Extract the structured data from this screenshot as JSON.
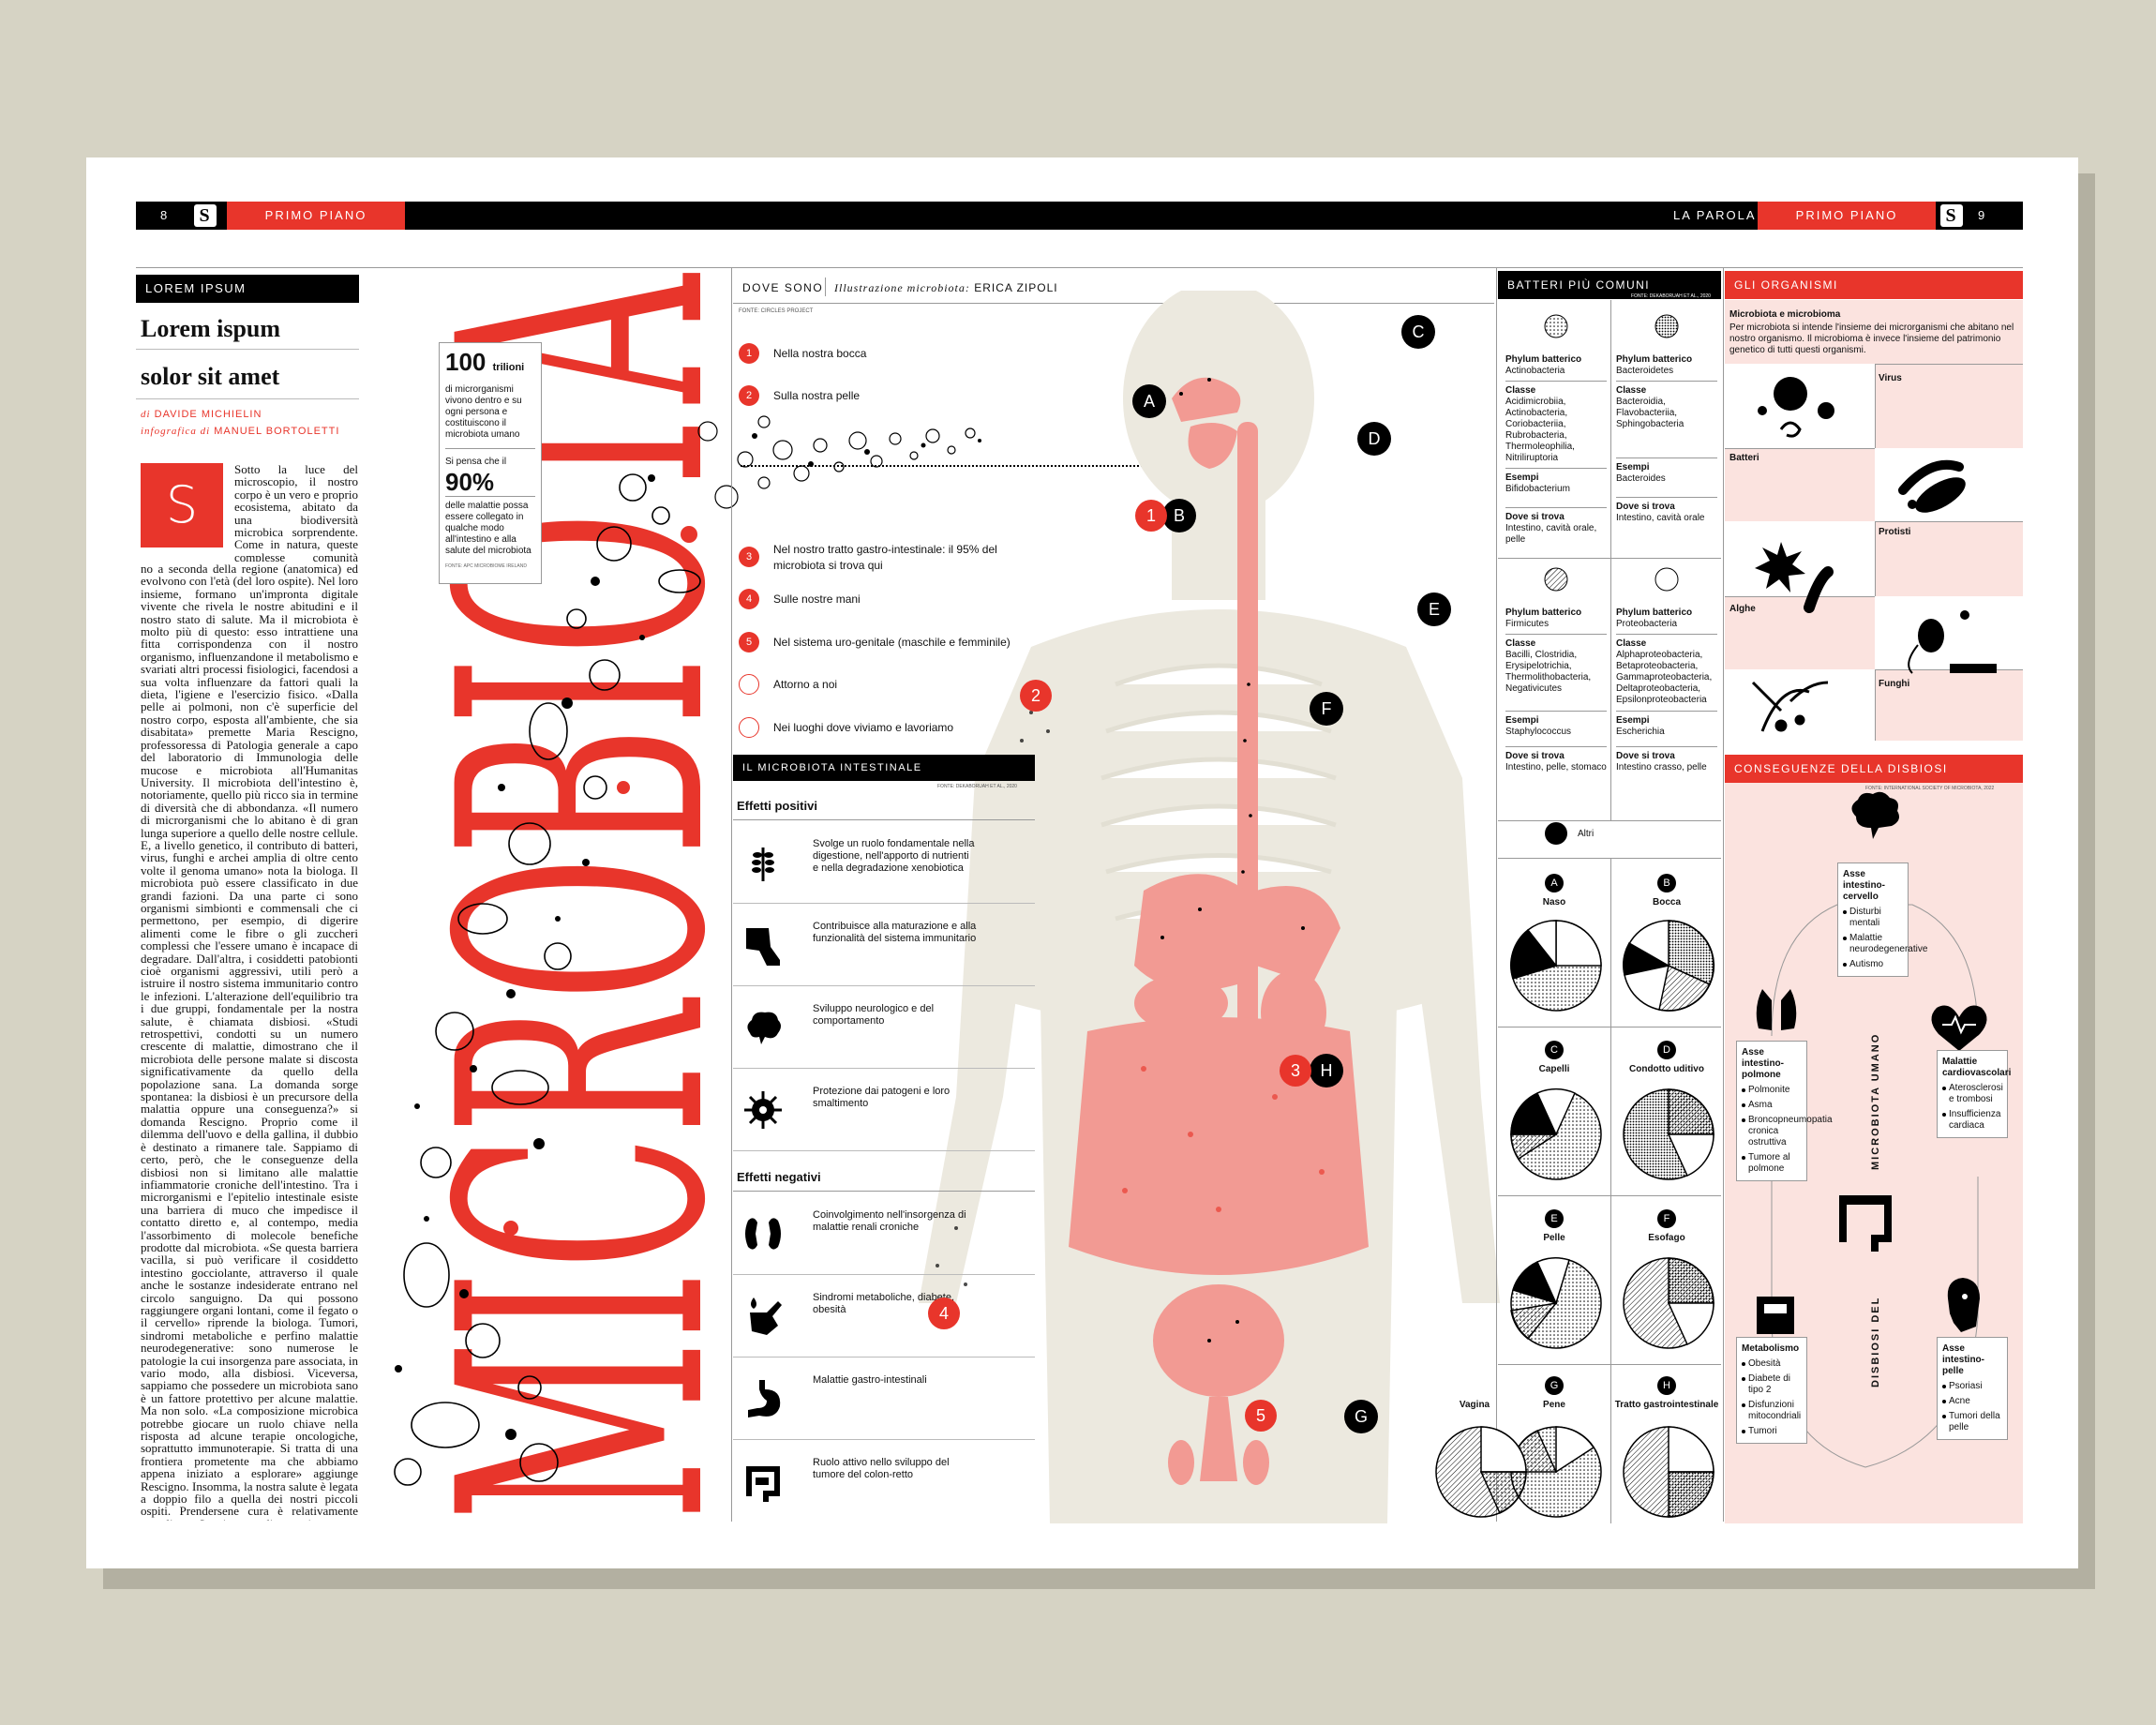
{
  "header": {
    "page_left": "8",
    "section_left": "PRIMO PIANO",
    "logo": "S",
    "tag_right": "LA PAROLA",
    "section_right": "PRIMO PIANO",
    "page_right": "9"
  },
  "article": {
    "kicker": "LOREM IPSUM",
    "title_line1": "Lorem ispum",
    "title_line2": "solor sit amet",
    "byline_prefix": "di",
    "byline_author": "DAVIDE MICHIELIN",
    "infographic_prefix": "infografica di",
    "infographic_author": "MANUEL BORTOLETTI",
    "dropcap": "S",
    "lead": "Sotto la luce del microscopio, il nostro corpo è un vero e proprio ecosistema, abitato da una biodiversità microbica sorprendente. Come in natura, queste complesse comunità varia-",
    "body": "no a seconda della regione (anatomica) ed evolvono con l'età (del loro ospite). Nel loro insieme, formano un'impronta digitale vivente che rivela le nostre abitudini e il nostro stato di salute. Ma il microbiota è molto più di questo: esso intrattiene una fitta corrispondenza con il nostro organismo, influenzandone il metabolismo e svariati altri processi fisiologici, facendosi a sua volta influenzare da fattori quali la dieta, l'igiene e l'esercizio fisico. «Dalla pelle ai polmoni, non c'è superficie del nostro corpo, esposta all'ambiente, che sia disabitata» premette Maria Rescigno, professoressa di Patologia generale a capo del laboratorio di Immunologia delle mucose e microbiota all'Humanitas University. Il microbiota dell'intestino è, notoriamente, quello più ricco sia in termine di diversità che di abbondanza. «Il numero di microrganismi che lo abitano è di gran lunga superiore a quello delle nostre cellule. E, a livello genetico, il contributo di batteri, virus, funghi e archei amplia di oltre cento volte il genoma umano» nota la biologa. Il microbiota può essere classificato in due grandi fazioni. Da una parte ci sono organismi simbionti e commensali che ci permettono, per esempio, di digerire alimenti come le fibre o gli zuccheri complessi che l'essere umano è incapace di degradare. Dall'altra, i cosiddetti patobionti cioè organismi aggressivi, utili però a istruire il nostro sistema immunitario contro le infezioni. L'alterazione dell'equilibrio tra i due gruppi, fondamentale per la nostra salute, è chiamata disbiosi. «Studi retrospettivi, condotti su un numero crescente di malattie, dimostrano che il microbiota delle persone malate si discosta significativamente da quello della popolazione sana. La domanda sorge spontanea: la disbiosi è un precursore della malattia oppure una conseguenza?» si domanda Rescigno. Proprio come il dilemma dell'uovo e della gallina, il dubbio è destinato a rimanere tale. Sappiamo di certo, però, che le conseguenze della disbiosi non si limitano alle malattie infiammatorie croniche dell'intestino. Tra i microrganismi e l'epitelio intestinale esiste una barriera di muco che impedisce il contatto diretto e, al contempo, media l'assorbimento di molecole benefiche prodotte dal microbiota. «Se questa barriera vacilla, si può verificare il cosiddetto intestino gocciolante, attraverso il quale anche le sostanze indesiderate entrano nel circolo sanguigno. Da qui possono raggiungere organi lontani, come il fegato o il cervello» riprende la biologa. Tumori, sindromi metaboliche e perfino malattie neurodegenerative: sono numerose le patologie la cui insorgenza pare associata, in vario modo, alla disbiosi. Viceversa, sappiamo che possedere un microbiota sano è un fattore protettivo per alcune malattie. Ma non solo. «La composizione microbica potrebbe giocare un ruolo chiave nella risposta ad alcune terapie oncologiche, soprattutto immunoterapie. Si tratta di una frontiera prometente ma che abbiamo appena iniziato a esplorare» aggiunge Rescigno. Insomma, la nostra salute è legata a doppio filo a quella dei nostri piccoli ospiti. Prendersene cura è relativamente semplice: «Seguire una dieta varia, povera di zuccheri semplici e grassi animali, mangiare cibi fermentati, cercare di allungare il tempo tra un pasto e l'altro. E compiere ogni giorno attività fisica» conclude la biologa."
  },
  "big_word": "MICROBIOTA",
  "stat_box": {
    "number1": "100",
    "unit1": "trilioni",
    "text1": "di microrganismi vivono dentro e su ogni persona e costituiscono il microbiota umano",
    "intro2": "Si pensa che il",
    "number2": "90%",
    "text2": "delle malattie possa essere collegato in qualche modo all'intestino e alla salute del microbiota",
    "source": "FONTE: APC MICROBIOME IRELAND"
  },
  "where": {
    "head": "DOVE SONO",
    "illustration_prefix": "Illustrazione microbiota:",
    "illustration_author": "ERICA ZIPOLI",
    "source": "FONTE: CIRCLES PROJECT",
    "items": [
      {
        "n": "1",
        "text": "Nella nostra bocca"
      },
      {
        "n": "2",
        "text": "Sulla nostra pelle"
      },
      {
        "n": "3",
        "text": "Nel nostro tratto gastro-intestinale: il 95% del microbiota si trova qui"
      },
      {
        "n": "4",
        "text": "Sulle nostre mani"
      },
      {
        "n": "5",
        "text": "Nel sistema uro-genitale (maschile e femminile)"
      },
      {
        "n": "",
        "text": "Attorno a noi"
      },
      {
        "n": "",
        "text": "Nei luoghi dove viviamo e lavoriamo"
      }
    ]
  },
  "intestinal": {
    "head": "IL MICROBIOTA INTESTINALE",
    "source": "FONTE: DEKABORUAH ET AL., 2020",
    "positive_title": "Effetti positivi",
    "positive": [
      {
        "icon": "wheat-icon",
        "text": "Svolge un ruolo fondamentale nella digestione, nell'apporto di nutrienti e nella degradazione xenobiotica"
      },
      {
        "icon": "leg-icon",
        "text": "Contribuisce alla maturazione e alla funzionalità del sistema immunitario"
      },
      {
        "icon": "brain-icon",
        "text": "Sviluppo neurologico e del comportamento"
      },
      {
        "icon": "virus-icon",
        "text": "Protezione dai patogeni e loro smaltimento"
      }
    ],
    "negative_title": "Effetti negativi",
    "negative": [
      {
        "icon": "kidney-icon",
        "text": "Coinvolgimento nell'insorgenza di malattie renali croniche"
      },
      {
        "icon": "hand-drop-icon",
        "text": "Sindromi metaboliche, diabete, obesità"
      },
      {
        "icon": "stomach-icon",
        "text": "Malattie gastro-intestinali"
      },
      {
        "icon": "intestine-icon",
        "text": "Ruolo attivo nello sviluppo del tumore del colon-retto"
      }
    ]
  },
  "body_pins": {
    "letters": [
      "A",
      "B",
      "C",
      "D",
      "E",
      "F",
      "G",
      "H"
    ],
    "numbers": [
      "1",
      "2",
      "3",
      "4",
      "5"
    ]
  },
  "bacteria": {
    "head": "BATTERI PIÙ COMUNI",
    "source": "FONTE: DEKABORUAH ET AL., 2020",
    "phyla": [
      {
        "phylum_label": "Phylum batterico",
        "phylum": "Actinobacteria",
        "class_label": "Classe",
        "classes": "Acidimicrobiia, Actinobacteria, Coriobacteriia, Rubrobacteria, Thermoleophilia, Nitriliruptoria",
        "example_label": "Esempi",
        "example": "Bifidobacterium",
        "where_label": "Dove si trova",
        "where": "Intestino, cavità orale, pelle"
      },
      {
        "phylum_label": "Phylum batterico",
        "phylum": "Bacteroidetes",
        "class_label": "Classe",
        "classes": "Bacteroidia, Flavobacteriia, Sphingobacteria",
        "example_label": "Esempi",
        "example": "Bacteroides",
        "where_label": "Dove si trova",
        "where": "Intestino, cavità orale"
      },
      {
        "phylum_label": "Phylum batterico",
        "phylum": "Firmicutes",
        "class_label": "Classe",
        "classes": "Bacilli, Clostridia, Erysipelotrichia, Thermolithobacteria, Negativicutes",
        "example_label": "Esempi",
        "example": "Staphylococcus",
        "where_label": "Dove si trova",
        "where": "Intestino, pelle, stomaco"
      },
      {
        "phylum_label": "Phylum batterico",
        "phylum": "Proteobacteria",
        "class_label": "Classe",
        "classes": "Alphaproteobacteria, Betaproteobacteria, Gammaproteobacteria, Deltaproteobacteria, Epsilonproteobacteria",
        "example_label": "Esempi",
        "example": "Escherichia",
        "where_label": "Dove si trova",
        "where": "Intestino crasso, pelle"
      }
    ],
    "legend_other": "Altri",
    "pies": [
      {
        "pin": "A",
        "name": "Naso"
      },
      {
        "pin": "B",
        "name": "Bocca"
      },
      {
        "pin": "C",
        "name": "Capelli"
      },
      {
        "pin": "D",
        "name": "Condotto uditivo"
      },
      {
        "pin": "E",
        "name": "Pelle"
      },
      {
        "pin": "F",
        "name": "Esofago"
      },
      {
        "pin": "G",
        "name": "Pene"
      },
      {
        "pin": "H",
        "name": "Tratto gastrointestinale"
      }
    ],
    "vagina_label": "Vagina"
  },
  "organisms": {
    "head": "GLI ORGANISMI",
    "title": "Microbiota e microbioma",
    "intro": "Per microbiota si intende l'insieme dei microrganismi che abitano nel nostro organismo. Il microbioma è invece l'insieme del patrimonio genetico di tutti questi organismi.",
    "labels": [
      "Virus",
      "Batteri",
      "Protisti",
      "Alghe",
      "Funghi"
    ]
  },
  "dysbiosis": {
    "head": "CONSEGUENZE DELLA DISBIOSI",
    "source": "FONTE: INTERNATIONAL SOCIETY OF MICROBIOTA, 2022",
    "vertical_top": "MICROBIOTA UMANO",
    "vertical_bottom": "DISBIOSI DEL",
    "boxes": [
      {
        "title": "Asse intestino-cervello",
        "items": [
          "Disturbi mentali",
          "Malattie neurodegenerative",
          "Autismo"
        ]
      },
      {
        "title": "Asse intestino-polmone",
        "items": [
          "Polmonite",
          "Asma",
          "Broncopneumopatia cronica ostruttiva",
          "Tumore al polmone"
        ]
      },
      {
        "title": "Malattie cardiovascolari",
        "items": [
          "Aterosclerosi e trombosi",
          "Insufficienza cardiaca"
        ]
      },
      {
        "title": "Metabolismo",
        "items": [
          "Obesità",
          "Diabete di tipo 2",
          "Disfunzioni mitocondriali",
          "Tumori"
        ]
      },
      {
        "title": "Asse intestino-pelle",
        "items": [
          "Psoriasi",
          "Acne",
          "Tumori della pelle"
        ]
      }
    ]
  },
  "colors": {
    "accent": "#e8352b",
    "pink": "#fbe3df",
    "body": "#ece9df",
    "organ": "#f29a93"
  }
}
